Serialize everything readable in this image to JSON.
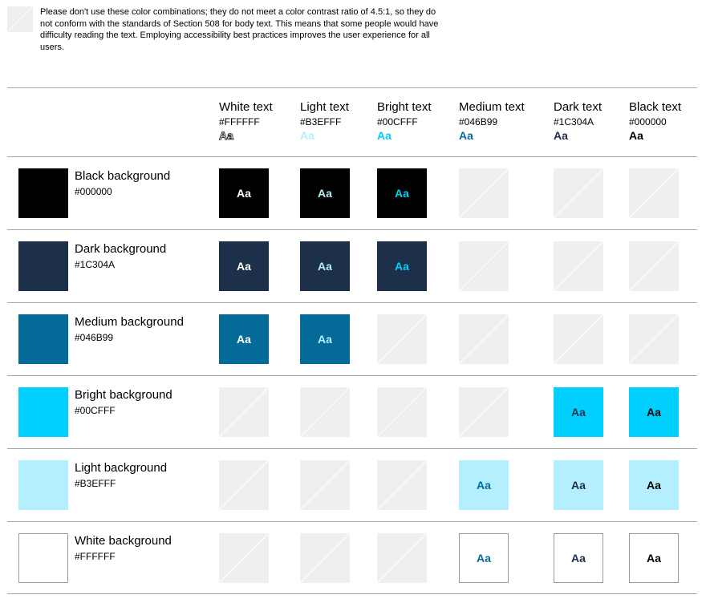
{
  "note": {
    "icon": "no-contrast-icon",
    "text": "Please don't use these color combinations; they do not meet a color contrast ratio of 4.5:1, so they do not conform with the standards of Section 508 for body text. This means that some people would have difficulty reading the text. Employing accessibility best practices improves the user experience for all users."
  },
  "columns": [
    {
      "name": "White text",
      "hex": "#FFFFFF",
      "sample": "Aa",
      "color": "#FFFFFF"
    },
    {
      "name": "Light text",
      "hex": "#B3EFFF",
      "sample": "Aa",
      "color": "#B3EFFF"
    },
    {
      "name": "Bright text",
      "hex": "#00CFFF",
      "sample": "Aa",
      "color": "#00CFFF"
    },
    {
      "name": "Medium text",
      "hex": "#046B99",
      "sample": "Aa",
      "color": "#046B99"
    },
    {
      "name": "Dark text",
      "hex": "#1C304A",
      "sample": "Aa",
      "color": "#1C304A"
    },
    {
      "name": "Black text",
      "hex": "#000000",
      "sample": "Aa",
      "color": "#000000"
    }
  ],
  "rows": [
    {
      "name": "Black background",
      "hex": "#000000",
      "color": "#000000",
      "cells": [
        true,
        true,
        true,
        false,
        false,
        false
      ],
      "sample": "Aa"
    },
    {
      "name": "Dark background",
      "hex": "#1C304A",
      "color": "#1C304A",
      "cells": [
        true,
        true,
        true,
        false,
        false,
        false
      ],
      "sample": "Aa"
    },
    {
      "name": "Medium background",
      "hex": "#046B99",
      "color": "#046B99",
      "cells": [
        true,
        true,
        false,
        false,
        false,
        false
      ],
      "sample": "Aa"
    },
    {
      "name": "Bright background",
      "hex": "#00CFFF",
      "color": "#00CFFF",
      "cells": [
        false,
        false,
        false,
        false,
        true,
        true
      ],
      "sample": "Aa"
    },
    {
      "name": "Light background",
      "hex": "#B3EFFF",
      "color": "#B3EFFF",
      "cells": [
        false,
        false,
        false,
        true,
        true,
        true
      ],
      "sample": "Aa"
    },
    {
      "name": "White background",
      "hex": "#FFFFFF",
      "color": "#FFFFFF",
      "cells": [
        false,
        false,
        false,
        true,
        true,
        true
      ],
      "sample": "Aa"
    }
  ],
  "colors": {
    "unavailable": "#EFEFEF",
    "divider": "#A6A6A6"
  }
}
